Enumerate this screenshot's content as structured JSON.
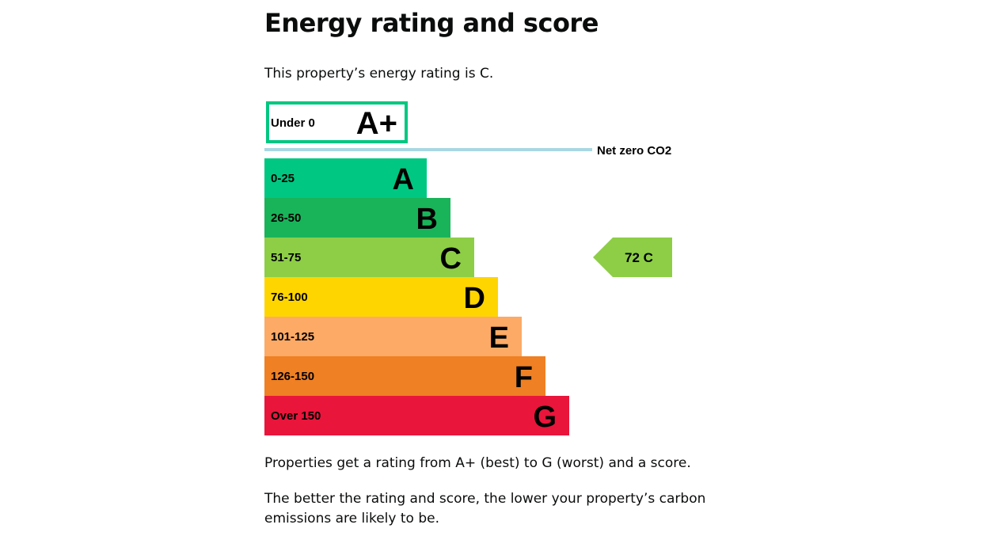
{
  "title": "Energy rating and score",
  "intro": "This property’s energy rating is C.",
  "chart_data": {
    "type": "bar",
    "bands": [
      {
        "rating": "A+",
        "range": "Under 0",
        "color": "#00c781",
        "outline": true
      },
      {
        "rating": "A",
        "range": "0-25",
        "color": "#00c781"
      },
      {
        "rating": "B",
        "range": "26-50",
        "color": "#19b459"
      },
      {
        "rating": "C",
        "range": "51-75",
        "color": "#8dce46"
      },
      {
        "rating": "D",
        "range": "76-100",
        "color": "#ffd500"
      },
      {
        "rating": "E",
        "range": "101-125",
        "color": "#fcaa65"
      },
      {
        "rating": "F",
        "range": "126-150",
        "color": "#ef8023"
      },
      {
        "rating": "G",
        "range": "Over 150",
        "color": "#e9153b"
      }
    ],
    "net_zero_label": "Net zero CO2",
    "net_zero_color": "#a8d8e2",
    "current": {
      "score": 72,
      "rating": "C",
      "label": "72  C"
    }
  },
  "footer": {
    "p1": "Properties get a rating from A+ (best) to G (worst) and a score.",
    "p2": "The better the rating and score, the lower your property’s carbon emissions are likely to be."
  }
}
